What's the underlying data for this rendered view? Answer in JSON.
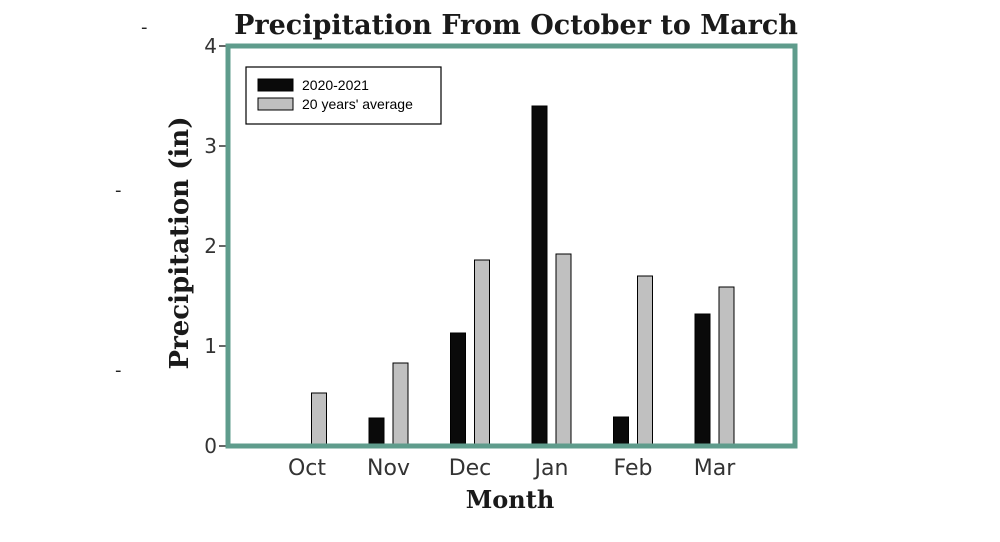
{
  "chart_data": {
    "type": "bar",
    "title": "Precipitation From October to March",
    "xlabel": "Month",
    "ylabel": "Precipitation (in)",
    "categories": [
      "Oct",
      "Nov",
      "Dec",
      "Jan",
      "Feb",
      "Mar"
    ],
    "ylim": [
      0,
      4
    ],
    "yticks": [
      "0",
      "1",
      "2",
      "3",
      "4"
    ],
    "series": [
      {
        "name": "2020-2021",
        "values": [
          0,
          0.28,
          1.13,
          3.4,
          0.29,
          1.32
        ],
        "color": "#0a0a0a"
      },
      {
        "name": "20 years' average",
        "values": [
          0.53,
          0.83,
          1.86,
          1.92,
          1.7,
          1.59
        ],
        "color": "#c0c0c0"
      }
    ],
    "grid": false,
    "legend_position": "top-left",
    "frame_color": "#5f9c8c"
  }
}
